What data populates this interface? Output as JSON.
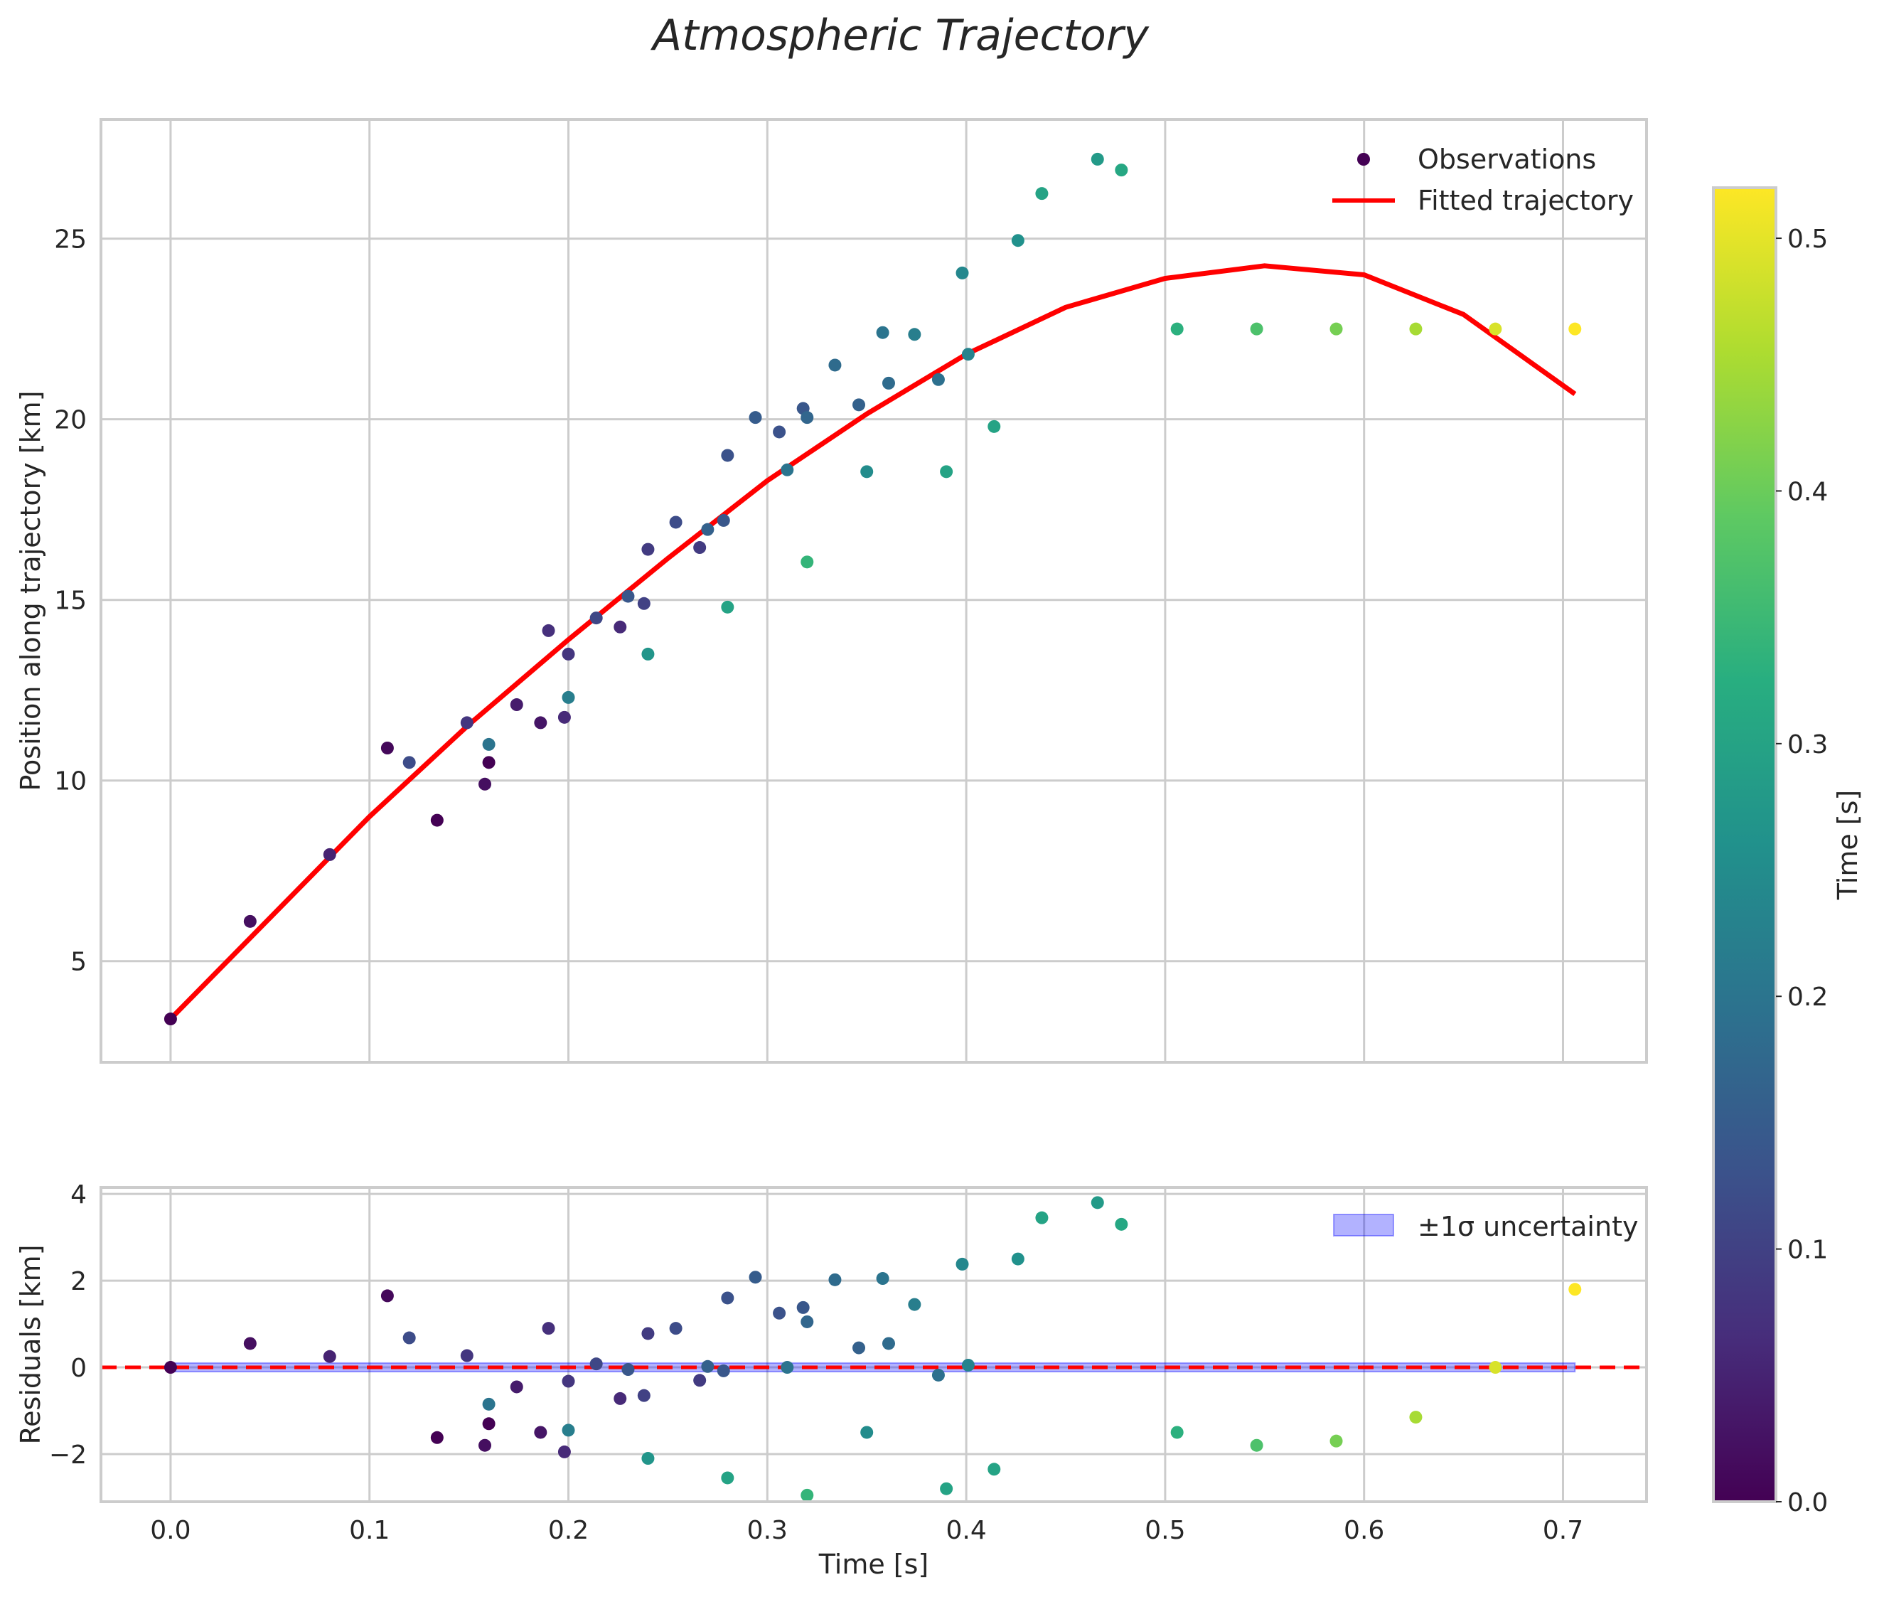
{
  "chart_data": [
    {
      "type": "scatter",
      "role": "main",
      "title": "Atmospheric Trajectory",
      "xlabel": "",
      "ylabel": "Position along trajectory [km]",
      "xlim": [
        -0.035,
        0.742
      ],
      "ylim": [
        2.2,
        28.3
      ],
      "xticks": [
        0.0,
        0.1,
        0.2,
        0.3,
        0.4,
        0.5,
        0.6,
        0.7
      ],
      "yticks": [
        5,
        10,
        15,
        20,
        25
      ],
      "ytick_labels": [
        "5",
        "10",
        "15",
        "20",
        "25"
      ],
      "grid": true,
      "legend": "top-right",
      "series": [
        {
          "name": "Observations",
          "kind": "scatter",
          "points": [
            [
              0.0,
              3.4,
              0.0
            ],
            [
              0.04,
              6.1,
              0.02
            ],
            [
              0.08,
              7.95,
              0.05
            ],
            [
              0.109,
              10.9,
              0.01
            ],
            [
              0.12,
              10.5,
              0.12
            ],
            [
              0.134,
              8.9,
              0.0
            ],
            [
              0.149,
              11.6,
              0.08
            ],
            [
              0.158,
              9.9,
              0.02
            ],
            [
              0.16,
              10.5,
              0.0
            ],
            [
              0.16,
              11.0,
              0.2
            ],
            [
              0.174,
              12.1,
              0.04
            ],
            [
              0.186,
              11.6,
              0.03
            ],
            [
              0.19,
              14.15,
              0.07
            ],
            [
              0.198,
              11.75,
              0.06
            ],
            [
              0.2,
              13.5,
              0.08
            ],
            [
              0.2,
              12.3,
              0.22
            ],
            [
              0.214,
              14.5,
              0.11
            ],
            [
              0.226,
              14.25,
              0.06
            ],
            [
              0.23,
              15.1,
              0.14
            ],
            [
              0.238,
              14.9,
              0.1
            ],
            [
              0.24,
              16.4,
              0.09
            ],
            [
              0.24,
              13.5,
              0.27
            ],
            [
              0.254,
              17.15,
              0.12
            ],
            [
              0.266,
              16.45,
              0.09
            ],
            [
              0.27,
              16.95,
              0.16
            ],
            [
              0.278,
              17.2,
              0.14
            ],
            [
              0.28,
              19.0,
              0.13
            ],
            [
              0.28,
              14.8,
              0.3
            ],
            [
              0.294,
              20.05,
              0.15
            ],
            [
              0.306,
              19.65,
              0.13
            ],
            [
              0.31,
              18.6,
              0.2
            ],
            [
              0.318,
              20.3,
              0.14
            ],
            [
              0.32,
              20.05,
              0.17
            ],
            [
              0.32,
              16.05,
              0.34
            ],
            [
              0.334,
              21.5,
              0.18
            ],
            [
              0.346,
              20.4,
              0.16
            ],
            [
              0.35,
              18.55,
              0.25
            ],
            [
              0.358,
              22.4,
              0.2
            ],
            [
              0.361,
              21.0,
              0.18
            ],
            [
              0.374,
              22.35,
              0.22
            ],
            [
              0.386,
              21.1,
              0.19
            ],
            [
              0.39,
              18.55,
              0.3
            ],
            [
              0.398,
              24.05,
              0.24
            ],
            [
              0.401,
              21.8,
              0.23
            ],
            [
              0.414,
              19.8,
              0.3
            ],
            [
              0.426,
              24.95,
              0.26
            ],
            [
              0.438,
              26.25,
              0.3
            ],
            [
              0.466,
              27.2,
              0.28
            ],
            [
              0.478,
              26.9,
              0.31
            ],
            [
              0.506,
              22.5,
              0.33
            ],
            [
              0.546,
              22.5,
              0.37
            ],
            [
              0.586,
              22.5,
              0.41
            ],
            [
              0.626,
              22.5,
              0.45
            ],
            [
              0.666,
              22.5,
              0.49
            ],
            [
              0.706,
              22.5,
              0.52
            ]
          ]
        },
        {
          "name": "Fitted trajectory",
          "kind": "line",
          "color": "#ff0000",
          "x": [
            0.0,
            0.05,
            0.1,
            0.15,
            0.2,
            0.25,
            0.3,
            0.35,
            0.4,
            0.45,
            0.5,
            0.55,
            0.6,
            0.65,
            0.706
          ],
          "y": [
            3.4,
            6.2,
            9.0,
            11.55,
            13.9,
            16.15,
            18.3,
            20.15,
            21.8,
            23.1,
            23.9,
            24.25,
            24.0,
            22.9,
            20.7
          ]
        }
      ]
    },
    {
      "type": "scatter",
      "role": "residuals",
      "title": "",
      "xlabel": "Time [s]",
      "ylabel": "Residuals [km]",
      "xlim": [
        -0.035,
        0.742
      ],
      "ylim": [
        -3.1,
        4.15
      ],
      "xticks": [
        0.0,
        0.1,
        0.2,
        0.3,
        0.4,
        0.5,
        0.6,
        0.7
      ],
      "xtick_labels": [
        "0.0",
        "0.1",
        "0.2",
        "0.3",
        "0.4",
        "0.5",
        "0.6",
        "0.7"
      ],
      "yticks": [
        -2,
        0,
        2,
        4
      ],
      "ytick_labels": [
        "−2",
        "0",
        "2",
        "4"
      ],
      "grid": true,
      "legend": "top-right",
      "zero_line": {
        "y": 0,
        "color": "#ff0000",
        "style": "dashed"
      },
      "band": {
        "name": "±1σ uncertainty",
        "x": [
          0.0,
          0.706
        ],
        "y": [
          -0.1,
          0.1
        ],
        "color": "#0000ff"
      },
      "series": [
        {
          "name": "Residuals",
          "kind": "scatter",
          "points": [
            [
              0.0,
              0.0,
              0.0
            ],
            [
              0.04,
              0.55,
              0.02
            ],
            [
              0.08,
              0.25,
              0.05
            ],
            [
              0.109,
              1.65,
              0.01
            ],
            [
              0.12,
              0.68,
              0.12
            ],
            [
              0.134,
              -1.62,
              0.0
            ],
            [
              0.149,
              0.27,
              0.08
            ],
            [
              0.158,
              -1.8,
              0.02
            ],
            [
              0.16,
              -1.3,
              0.0
            ],
            [
              0.16,
              -0.85,
              0.2
            ],
            [
              0.174,
              -0.45,
              0.04
            ],
            [
              0.186,
              -1.5,
              0.03
            ],
            [
              0.19,
              0.9,
              0.07
            ],
            [
              0.198,
              -1.95,
              0.06
            ],
            [
              0.2,
              -0.32,
              0.08
            ],
            [
              0.2,
              -1.45,
              0.22
            ],
            [
              0.214,
              0.08,
              0.11
            ],
            [
              0.226,
              -0.72,
              0.06
            ],
            [
              0.23,
              -0.05,
              0.14
            ],
            [
              0.238,
              -0.65,
              0.1
            ],
            [
              0.24,
              0.78,
              0.09
            ],
            [
              0.24,
              -2.1,
              0.27
            ],
            [
              0.254,
              0.9,
              0.12
            ],
            [
              0.266,
              -0.3,
              0.09
            ],
            [
              0.27,
              0.02,
              0.16
            ],
            [
              0.278,
              -0.08,
              0.14
            ],
            [
              0.28,
              1.6,
              0.13
            ],
            [
              0.28,
              -2.55,
              0.3
            ],
            [
              0.294,
              2.08,
              0.15
            ],
            [
              0.306,
              1.25,
              0.13
            ],
            [
              0.31,
              0.0,
              0.2
            ],
            [
              0.318,
              1.38,
              0.14
            ],
            [
              0.32,
              1.05,
              0.17
            ],
            [
              0.32,
              -2.95,
              0.34
            ],
            [
              0.334,
              2.02,
              0.18
            ],
            [
              0.346,
              0.45,
              0.16
            ],
            [
              0.35,
              -1.5,
              0.25
            ],
            [
              0.358,
              2.05,
              0.2
            ],
            [
              0.361,
              0.55,
              0.18
            ],
            [
              0.374,
              1.45,
              0.22
            ],
            [
              0.386,
              -0.18,
              0.19
            ],
            [
              0.39,
              -2.8,
              0.3
            ],
            [
              0.398,
              2.38,
              0.24
            ],
            [
              0.401,
              0.05,
              0.23
            ],
            [
              0.414,
              -2.35,
              0.3
            ],
            [
              0.426,
              2.5,
              0.26
            ],
            [
              0.438,
              3.45,
              0.3
            ],
            [
              0.466,
              3.8,
              0.28
            ],
            [
              0.478,
              3.3,
              0.31
            ],
            [
              0.506,
              -1.5,
              0.33
            ],
            [
              0.546,
              -1.8,
              0.37
            ],
            [
              0.586,
              -1.7,
              0.41
            ],
            [
              0.626,
              -1.15,
              0.45
            ],
            [
              0.666,
              0.0,
              0.49
            ],
            [
              0.706,
              1.8,
              0.52
            ]
          ]
        }
      ]
    },
    {
      "type": "colorbar",
      "role": "colorbar",
      "label": "Time [s]",
      "colormap": "viridis",
      "vmin": 0.0,
      "vmax": 0.52,
      "ticks": [
        0.0,
        0.1,
        0.2,
        0.3,
        0.4,
        0.5
      ],
      "tick_labels": [
        "0.0",
        "0.1",
        "0.2",
        "0.3",
        "0.4",
        "0.5"
      ]
    }
  ]
}
